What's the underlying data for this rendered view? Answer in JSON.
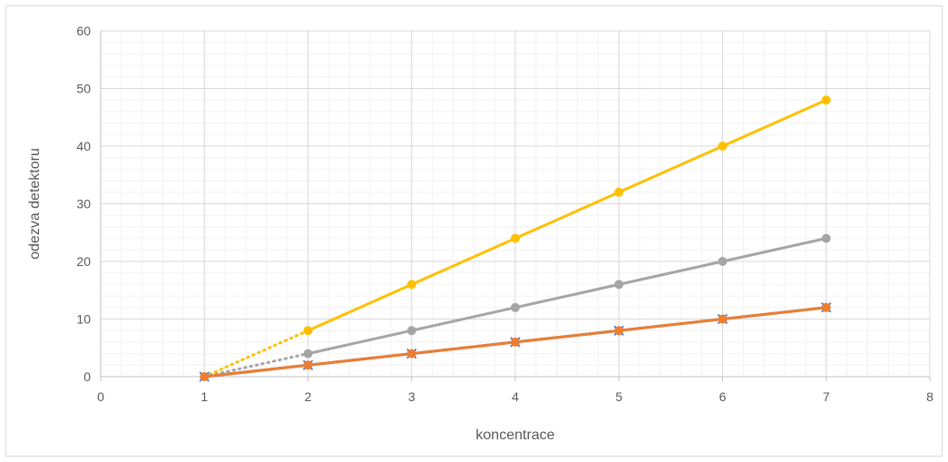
{
  "chart_data": {
    "type": "line",
    "title": "",
    "xlabel": "koncentrace",
    "ylabel": "odezva detektoru",
    "xlim": [
      0,
      8
    ],
    "ylim": [
      0,
      60
    ],
    "xticks": [
      0,
      1,
      2,
      3,
      4,
      5,
      6,
      7,
      8
    ],
    "yticks": [
      0,
      10,
      20,
      30,
      40,
      50,
      60
    ],
    "x_minor_step": 0.2,
    "y_minor_step": 2,
    "grid": true,
    "legend": "none",
    "series": [
      {
        "color": "#FFC000",
        "marker": "circle",
        "points": [
          [
            2,
            8
          ],
          [
            3,
            16
          ],
          [
            4,
            24
          ],
          [
            5,
            32
          ],
          [
            6,
            40
          ],
          [
            7,
            48
          ]
        ],
        "dotted_to": [
          1,
          0
        ]
      },
      {
        "color": "#A5A5A5",
        "marker": "circle",
        "points": [
          [
            2,
            4
          ],
          [
            3,
            8
          ],
          [
            4,
            12
          ],
          [
            5,
            16
          ],
          [
            6,
            20
          ],
          [
            7,
            24
          ]
        ],
        "dotted_to": [
          1,
          0
        ]
      },
      {
        "color": "#4472C4",
        "marker": "x",
        "points": [
          [
            1,
            0
          ],
          [
            2,
            2
          ],
          [
            3,
            4
          ],
          [
            4,
            6
          ],
          [
            5,
            8
          ],
          [
            6,
            10
          ],
          [
            7,
            12
          ]
        ]
      },
      {
        "color": "#ED7D31",
        "marker": "circle",
        "points": [
          [
            1,
            0
          ],
          [
            2,
            2
          ],
          [
            3,
            4
          ],
          [
            4,
            6
          ],
          [
            5,
            8
          ],
          [
            6,
            10
          ],
          [
            7,
            12
          ]
        ]
      }
    ]
  }
}
